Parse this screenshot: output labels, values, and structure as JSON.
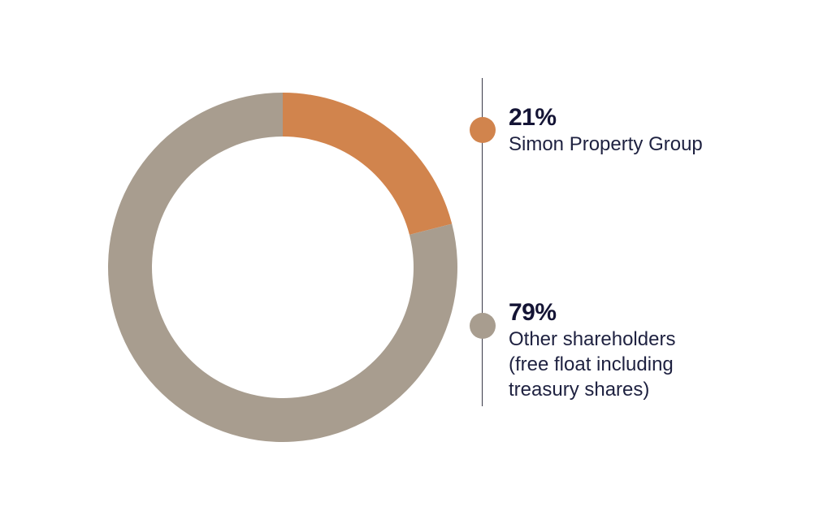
{
  "chart_data": {
    "type": "pie",
    "style": "donut",
    "categories": [
      "Simon Property Group",
      "Other shareholders\n(free float including\ntreasury shares)"
    ],
    "values": [
      21,
      79
    ],
    "value_labels": [
      "21%",
      "79%"
    ],
    "colors": [
      "#d1844d",
      "#a89d8f"
    ],
    "legend_placement": "right"
  }
}
